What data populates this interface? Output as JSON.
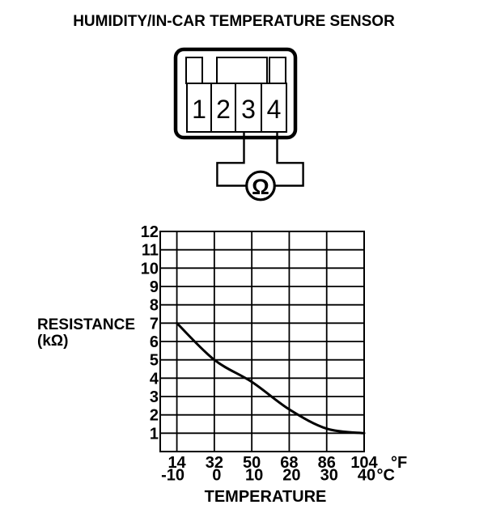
{
  "title": "HUMIDITY/IN-CAR TEMPERATURE SENSOR",
  "connector": {
    "pins": [
      "1",
      "2",
      "3",
      "4"
    ],
    "meter_symbol": "Ω",
    "measured_pins": [
      "3",
      "4"
    ]
  },
  "chart_data": {
    "type": "line",
    "title": "",
    "xlabel": "TEMPERATURE",
    "ylabel_line1": "RESISTANCE",
    "ylabel_line2": "(kΩ)",
    "grid": true,
    "y_axis": {
      "ticks": [
        12,
        11,
        10,
        9,
        8,
        7,
        6,
        5,
        4,
        3,
        2,
        1
      ],
      "range": [
        0,
        12
      ]
    },
    "x_axis": {
      "fahrenheit": {
        "ticks": [
          14,
          32,
          50,
          68,
          86,
          104
        ],
        "unit": "°F"
      },
      "celsius": {
        "ticks": [
          -10,
          0,
          10,
          20,
          30,
          40
        ],
        "unit": "°C"
      },
      "range_f": [
        6,
        104
      ]
    },
    "series": [
      {
        "name": "resistance",
        "x_f": [
          14,
          32,
          50,
          68,
          86,
          104
        ],
        "y_kohm": [
          7.0,
          5.0,
          3.8,
          2.3,
          1.25,
          1.0
        ]
      }
    ]
  }
}
